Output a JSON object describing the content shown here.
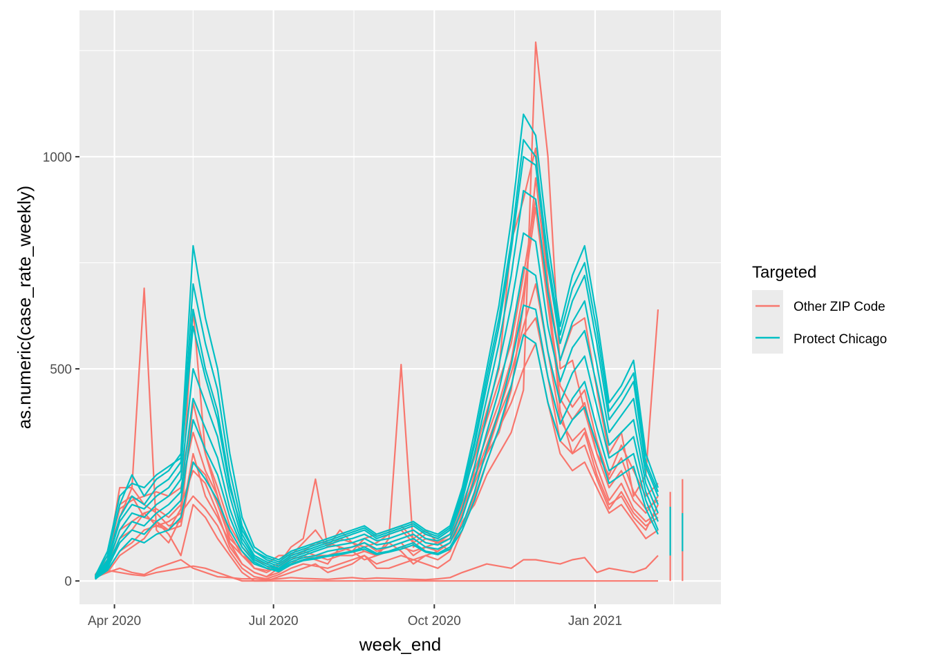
{
  "chart_data": {
    "type": "line",
    "xlabel": "week_end",
    "ylabel": "as.numeric(case_rate_weekly)",
    "x_ticks": [
      "Apr 2020",
      "Jul 2020",
      "Oct 2020",
      "Jan 2021"
    ],
    "x_range": [
      "2020-03-12",
      "2021-03-14"
    ],
    "y_ticks": [
      0,
      500,
      1000
    ],
    "ylim": [
      -55,
      1345
    ],
    "grid": true,
    "legend": {
      "title": "Targeted",
      "position": "right",
      "entries": [
        {
          "label": "Other ZIP Code",
          "color": "#F8766D"
        },
        {
          "label": "Protect Chicago",
          "color": "#00BFC4"
        }
      ]
    },
    "weeks": [
      "2020-03-21",
      "2020-03-28",
      "2020-04-04",
      "2020-04-11",
      "2020-04-18",
      "2020-04-25",
      "2020-05-02",
      "2020-05-09",
      "2020-05-16",
      "2020-05-23",
      "2020-05-30",
      "2020-06-06",
      "2020-06-13",
      "2020-06-20",
      "2020-06-27",
      "2020-07-04",
      "2020-07-11",
      "2020-07-18",
      "2020-07-25",
      "2020-08-01",
      "2020-08-08",
      "2020-08-15",
      "2020-08-22",
      "2020-08-29",
      "2020-09-05",
      "2020-09-12",
      "2020-09-19",
      "2020-09-26",
      "2020-10-03",
      "2020-10-10",
      "2020-10-17",
      "2020-10-24",
      "2020-10-31",
      "2020-11-07",
      "2020-11-14",
      "2020-11-21",
      "2020-11-28",
      "2020-12-05",
      "2020-12-12",
      "2020-12-19",
      "2020-12-26",
      "2021-01-02",
      "2021-01-09",
      "2021-01-16",
      "2021-01-23",
      "2021-01-30",
      "2021-02-06"
    ],
    "series": [
      {
        "group": "Other ZIP Code",
        "values": [
          10,
          40,
          150,
          220,
          690,
          120,
          90,
          150,
          420,
          300,
          200,
          90,
          60,
          40,
          30,
          40,
          80,
          100,
          240,
          80,
          120,
          90,
          70,
          60,
          100,
          510,
          80,
          100,
          90,
          70,
          140,
          180,
          250,
          300,
          350,
          450,
          1270,
          1000,
          500,
          520,
          400,
          300,
          250,
          320,
          260,
          200,
          230
        ]
      },
      {
        "group": "Other ZIP Code",
        "values": [
          5,
          30,
          100,
          120,
          160,
          130,
          120,
          170,
          640,
          300,
          220,
          130,
          80,
          50,
          40,
          60,
          60,
          70,
          90,
          90,
          80,
          70,
          100,
          110,
          120,
          130,
          100,
          120,
          90,
          100,
          200,
          300,
          400,
          500,
          800,
          900,
          1020,
          700,
          520,
          600,
          620,
          450,
          300,
          350,
          200,
          250,
          640
        ]
      },
      {
        "group": "Other ZIP Code",
        "values": [
          15,
          50,
          220,
          220,
          180,
          160,
          130,
          140,
          300,
          200,
          150,
          90,
          40,
          20,
          10,
          30,
          40,
          60,
          50,
          40,
          80,
          70,
          50,
          60,
          90,
          70,
          40,
          60,
          70,
          90,
          150,
          250,
          300,
          350,
          450,
          650,
          950,
          700,
          400,
          300,
          350,
          250,
          180,
          200,
          150,
          120,
          180
        ]
      },
      {
        "group": "Other ZIP Code",
        "values": [
          12,
          40,
          180,
          200,
          150,
          140,
          120,
          130,
          280,
          250,
          180,
          100,
          70,
          30,
          20,
          35,
          50,
          70,
          60,
          60,
          70,
          80,
          90,
          70,
          80,
          90,
          60,
          80,
          90,
          110,
          180,
          260,
          340,
          420,
          520,
          680,
          880,
          650,
          430,
          380,
          420,
          300,
          220,
          260,
          190,
          160,
          200
        ]
      },
      {
        "group": "Other ZIP Code",
        "values": [
          8,
          20,
          60,
          80,
          100,
          140,
          110,
          60,
          180,
          150,
          100,
          60,
          20,
          0,
          0,
          10,
          20,
          30,
          40,
          20,
          30,
          40,
          60,
          30,
          30,
          40,
          50,
          40,
          30,
          50,
          120,
          200,
          280,
          360,
          420,
          500,
          560,
          420,
          300,
          260,
          280,
          220,
          160,
          180,
          140,
          100,
          120
        ]
      },
      {
        "group": "Other ZIP Code",
        "values": [
          6,
          25,
          70,
          90,
          120,
          130,
          140,
          160,
          200,
          170,
          130,
          70,
          30,
          10,
          5,
          15,
          30,
          40,
          35,
          30,
          40,
          50,
          60,
          40,
          50,
          60,
          50,
          60,
          50,
          70,
          160,
          230,
          300,
          390,
          460,
          580,
          620,
          480,
          330,
          300,
          320,
          240,
          170,
          210,
          160,
          130,
          150
        ]
      },
      {
        "group": "Other ZIP Code",
        "values": [
          10,
          20,
          30,
          20,
          15,
          30,
          40,
          50,
          30,
          20,
          10,
          8,
          5,
          5,
          3,
          5,
          8,
          6,
          5,
          4,
          6,
          8,
          5,
          7,
          6,
          5,
          4,
          3,
          5,
          8,
          20,
          30,
          40,
          35,
          30,
          50,
          50,
          45,
          40,
          50,
          55,
          20,
          30,
          25,
          20,
          30,
          60
        ]
      },
      {
        "group": "Other ZIP Code",
        "values": [
          10,
          25,
          20,
          15,
          12,
          20,
          25,
          30,
          35,
          30,
          20,
          10,
          0,
          0,
          0,
          0,
          0,
          0,
          0,
          0,
          0,
          0,
          0,
          0,
          0,
          0,
          0,
          0,
          0,
          0,
          0,
          0,
          0,
          0,
          0,
          0,
          0,
          0,
          0,
          0,
          0,
          0,
          0,
          0,
          0,
          0,
          0
        ]
      },
      {
        "group": "Other ZIP Code",
        "values": [
          14,
          60,
          170,
          190,
          200,
          210,
          200,
          220,
          350,
          260,
          200,
          110,
          60,
          30,
          25,
          35,
          60,
          90,
          120,
          80,
          100,
          90,
          80,
          90,
          110,
          120,
          90,
          110,
          100,
          120,
          210,
          290,
          380,
          470,
          560,
          720,
          900,
          660,
          460,
          410,
          450,
          330,
          240,
          290,
          210,
          170,
          190
        ]
      },
      {
        "group": "Other ZIP Code",
        "values": [
          9,
          35,
          120,
          140,
          160,
          170,
          150,
          180,
          260,
          230,
          160,
          80,
          40,
          20,
          10,
          20,
          40,
          50,
          60,
          50,
          60,
          60,
          70,
          60,
          70,
          80,
          70,
          80,
          70,
          90,
          170,
          240,
          320,
          400,
          490,
          600,
          700,
          540,
          380,
          330,
          360,
          270,
          190,
          230,
          170,
          140,
          160
        ]
      },
      {
        "group": "Protect Chicago",
        "values": [
          10,
          60,
          180,
          250,
          200,
          240,
          260,
          300,
          790,
          620,
          500,
          300,
          150,
          80,
          60,
          50,
          70,
          80,
          90,
          100,
          110,
          120,
          130,
          110,
          120,
          130,
          140,
          120,
          110,
          130,
          220,
          350,
          500,
          650,
          850,
          1100,
          1050,
          800,
          600,
          720,
          790,
          620,
          420,
          460,
          520,
          300,
          220
        ]
      },
      {
        "group": "Protect Chicago",
        "values": [
          8,
          50,
          150,
          200,
          180,
          220,
          240,
          280,
          700,
          560,
          450,
          260,
          130,
          70,
          50,
          40,
          60,
          70,
          80,
          90,
          100,
          110,
          120,
          100,
          110,
          120,
          130,
          110,
          100,
          120,
          200,
          320,
          460,
          600,
          780,
          1000,
          980,
          740,
          560,
          660,
          720,
          560,
          380,
          420,
          470,
          270,
          200
        ]
      },
      {
        "group": "Protect Chicago",
        "values": [
          7,
          45,
          140,
          180,
          170,
          200,
          220,
          260,
          640,
          500,
          400,
          230,
          110,
          60,
          45,
          35,
          55,
          65,
          75,
          85,
          95,
          100,
          110,
          95,
          100,
          110,
          120,
          100,
          95,
          110,
          190,
          300,
          430,
          560,
          720,
          920,
          900,
          680,
          520,
          610,
          660,
          510,
          350,
          390,
          430,
          250,
          180
        ]
      },
      {
        "group": "Protect Chicago",
        "values": [
          6,
          40,
          120,
          160,
          150,
          180,
          200,
          240,
          500,
          420,
          340,
          200,
          100,
          55,
          40,
          30,
          50,
          60,
          70,
          80,
          85,
          90,
          100,
          85,
          90,
          100,
          110,
          90,
          85,
          100,
          170,
          270,
          390,
          510,
          650,
          820,
          800,
          600,
          470,
          550,
          590,
          460,
          320,
          350,
          380,
          230,
          160
        ]
      },
      {
        "group": "Protect Chicago",
        "values": [
          5,
          35,
          100,
          140,
          130,
          160,
          180,
          210,
          430,
          360,
          290,
          170,
          90,
          50,
          35,
          28,
          45,
          55,
          60,
          70,
          75,
          80,
          90,
          75,
          80,
          90,
          100,
          80,
          75,
          90,
          150,
          240,
          350,
          450,
          580,
          740,
          720,
          540,
          420,
          490,
          530,
          410,
          290,
          310,
          340,
          210,
          140
        ]
      },
      {
        "group": "Protect Chicago",
        "values": [
          4,
          30,
          90,
          120,
          110,
          140,
          160,
          190,
          380,
          310,
          250,
          150,
          80,
          45,
          30,
          25,
          40,
          50,
          55,
          60,
          65,
          70,
          80,
          65,
          70,
          80,
          90,
          70,
          65,
          80,
          130,
          210,
          310,
          400,
          510,
          650,
          640,
          480,
          370,
          430,
          470,
          360,
          260,
          280,
          300,
          190,
          120
        ]
      },
      {
        "group": "Protect Chicago",
        "values": [
          12,
          70,
          200,
          230,
          220,
          250,
          270,
          290,
          600,
          480,
          380,
          220,
          120,
          70,
          55,
          45,
          65,
          75,
          85,
          95,
          105,
          115,
          125,
          105,
          115,
          125,
          135,
          115,
          105,
          125,
          210,
          330,
          480,
          620,
          800,
          1040,
          1000,
          760,
          580,
          690,
          750,
          590,
          400,
          440,
          490,
          280,
          210
        ]
      },
      {
        "group": "Protect Chicago",
        "values": [
          5,
          25,
          70,
          100,
          90,
          110,
          120,
          150,
          280,
          240,
          190,
          120,
          70,
          40,
          30,
          22,
          38,
          48,
          52,
          58,
          62,
          68,
          75,
          62,
          68,
          75,
          85,
          68,
          62,
          75,
          120,
          190,
          280,
          360,
          460,
          580,
          560,
          420,
          330,
          380,
          410,
          320,
          230,
          250,
          270,
          170,
          110
        ]
      }
    ],
    "trailing_segments": [
      {
        "group": "Other ZIP Code",
        "x": "2021-02-13",
        "values": [
          0,
          210
        ]
      },
      {
        "group": "Protect Chicago",
        "x": "2021-02-13",
        "values": [
          60,
          175
        ]
      },
      {
        "group": "Other ZIP Code",
        "x": "2021-02-20",
        "values": [
          0,
          240
        ]
      },
      {
        "group": "Protect Chicago",
        "x": "2021-02-20",
        "values": [
          70,
          160
        ]
      }
    ]
  }
}
